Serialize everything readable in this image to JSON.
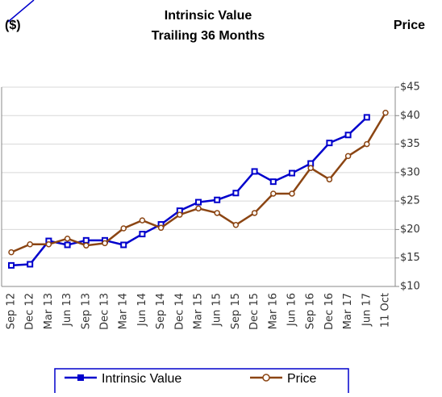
{
  "chart_data": {
    "type": "line",
    "title": [
      "Intrinsic Value",
      "Trailing 36 Months"
    ],
    "ylabel_left": "($)",
    "ylabel_right": "Price",
    "categories": [
      "Sep 12",
      "Dec 12",
      "Mar 13",
      "Jun 13",
      "Sep 13",
      "Dec 13",
      "Mar 14",
      "Jun 14",
      "Sep 14",
      "Dec 14",
      "Mar 15",
      "Jun 15",
      "Sep 15",
      "Dec 15",
      "Mar 16",
      "Jun 16",
      "Sep 16",
      "Dec 16",
      "Mar 17",
      "Jun 17",
      "11 Oct"
    ],
    "series": [
      {
        "name": "Intrinsic Value",
        "color": "#0000cc",
        "marker": "square",
        "values": [
          13.7,
          13.9,
          18.0,
          17.3,
          18.1,
          18.1,
          17.3,
          19.2,
          20.9,
          23.3,
          24.8,
          25.2,
          26.4,
          30.2,
          28.4,
          29.9,
          31.6,
          35.2,
          36.6,
          39.7,
          null
        ]
      },
      {
        "name": "Price",
        "color": "#8b4513",
        "marker": "circle",
        "values": [
          16.0,
          17.4,
          17.4,
          18.4,
          17.2,
          17.6,
          20.2,
          21.6,
          20.3,
          22.6,
          23.7,
          22.9,
          20.8,
          22.9,
          26.3,
          26.3,
          30.8,
          28.8,
          32.9,
          35.0,
          40.5
        ]
      }
    ],
    "ylim": [
      10,
      45
    ],
    "yticks": [
      {
        "value": 10,
        "label": "$10"
      },
      {
        "value": 15,
        "label": "$15"
      },
      {
        "value": 20,
        "label": "$20"
      },
      {
        "value": 25,
        "label": "$25"
      },
      {
        "value": 30,
        "label": "$30"
      },
      {
        "value": 35,
        "label": "$35"
      },
      {
        "value": 40,
        "label": "$40"
      },
      {
        "value": 45,
        "label": "$45"
      }
    ],
    "grid": true,
    "legend": "bottom"
  }
}
